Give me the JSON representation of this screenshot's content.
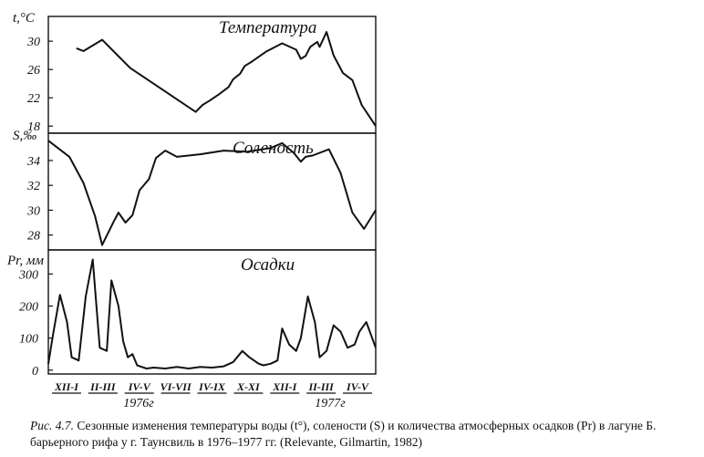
{
  "chart_data": [
    {
      "type": "line",
      "title": "Температура",
      "ylabel": "t,°C",
      "yticks": [
        18,
        22,
        26,
        30
      ],
      "ylim": [
        17,
        33.5
      ],
      "xlim": [
        0,
        14
      ],
      "x": [
        1.2,
        1.5,
        2.3,
        3.5,
        4.5,
        6.3,
        6.6,
        6.9,
        7.3,
        7.7,
        7.9,
        8.2,
        8.4,
        8.7,
        9.3,
        10.0,
        10.6,
        10.8,
        11.0,
        11.2,
        11.5,
        11.6,
        11.9,
        12.2,
        12.6,
        13.0,
        13.4,
        14.0
      ],
      "values": [
        29.0,
        28.6,
        30.2,
        26.2,
        24.0,
        20.0,
        21.0,
        21.6,
        22.5,
        23.5,
        24.6,
        25.4,
        26.5,
        27.1,
        28.5,
        29.7,
        28.8,
        27.5,
        27.9,
        29.2,
        29.9,
        29.2,
        31.3,
        28.0,
        25.5,
        24.5,
        21.0,
        18.0
      ]
    },
    {
      "type": "line",
      "title": "Соленость",
      "ylabel": "S,‰",
      "yticks": [
        28,
        30,
        32,
        34
      ],
      "ylim": [
        26.8,
        36.2
      ],
      "xlim": [
        0,
        14
      ],
      "x": [
        0.0,
        0.9,
        1.5,
        2.0,
        2.3,
        2.8,
        3.0,
        3.3,
        3.6,
        3.9,
        4.3,
        4.6,
        5.0,
        5.5,
        6.5,
        7.5,
        8.5,
        9.5,
        10.0,
        10.5,
        10.8,
        11.0,
        11.3,
        12.0,
        12.5,
        13.0,
        13.5,
        14.0
      ],
      "values": [
        35.6,
        34.3,
        32.2,
        29.5,
        27.2,
        29.1,
        29.8,
        29.0,
        29.6,
        31.6,
        32.5,
        34.2,
        34.8,
        34.3,
        34.5,
        34.8,
        34.7,
        35.0,
        35.4,
        34.6,
        33.9,
        34.3,
        34.4,
        34.9,
        33.0,
        29.8,
        28.5,
        30.0
      ]
    },
    {
      "type": "line",
      "title": "Осадки",
      "ylabel": "Pr, мм",
      "yticks": [
        0,
        100,
        200,
        300
      ],
      "ylim": [
        -12,
        375
      ],
      "xlim": [
        0,
        14
      ],
      "x": [
        0.0,
        0.2,
        0.5,
        0.8,
        1.0,
        1.3,
        1.6,
        1.9,
        2.2,
        2.5,
        2.7,
        3.0,
        3.2,
        3.4,
        3.6,
        3.8,
        4.0,
        4.2,
        4.5,
        5.0,
        5.5,
        6.0,
        6.5,
        7.0,
        7.5,
        7.9,
        8.3,
        8.6,
        9.0,
        9.2,
        9.5,
        9.8,
        10.0,
        10.3,
        10.6,
        10.8,
        11.1,
        11.4,
        11.6,
        11.9,
        12.2,
        12.5,
        12.8,
        13.1,
        13.3,
        13.6,
        14.0
      ],
      "values": [
        20,
        110,
        235,
        150,
        40,
        30,
        230,
        345,
        70,
        60,
        280,
        200,
        90,
        40,
        50,
        15,
        10,
        5,
        8,
        5,
        10,
        5,
        10,
        8,
        12,
        25,
        60,
        40,
        20,
        15,
        20,
        30,
        130,
        80,
        60,
        100,
        230,
        150,
        40,
        60,
        140,
        120,
        70,
        80,
        120,
        150,
        70
      ]
    }
  ],
  "x_axis": {
    "categories": [
      "XII-I",
      "II-III",
      "IV-V",
      "VI-VII",
      "IV-IX",
      "X-XI",
      "XII-I",
      "II-III",
      "IV-V"
    ],
    "years": [
      "1976г",
      "1977г"
    ]
  },
  "caption": {
    "label": "Рис. 4.7.",
    "text": "Сезонные изменения температуры воды (t°), солености (S) и количества атмосферных осадков (Pr) в лагуне Б. барьерного рифа у г. Таунсвиль в 1976–1977 гг. (Relevante, Gilmartin, 1982)"
  }
}
